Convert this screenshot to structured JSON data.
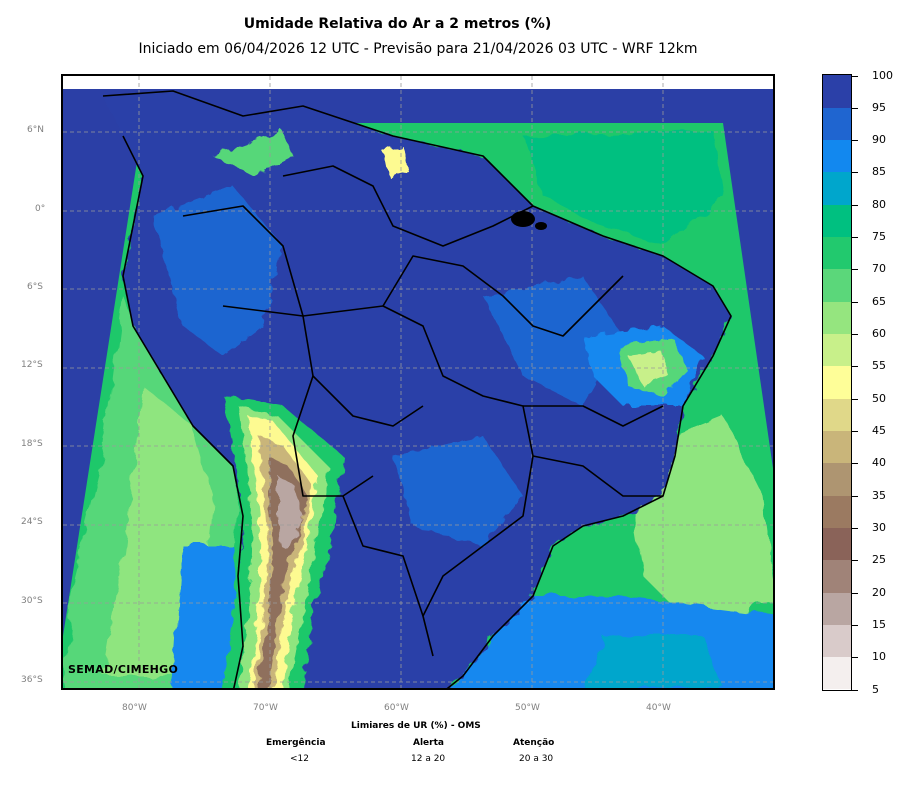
{
  "header": {
    "title": "Umidade Relativa do Ar a 2 metros (%)",
    "subtitle": "Iniciado em 06/04/2026 12 UTC - Previsão para 21/04/2026 03 UTC - WRF 12km"
  },
  "map": {
    "lat_labels": [
      "6°N",
      "0°",
      "6°S",
      "12°S",
      "18°S",
      "24°S",
      "30°S",
      "36°S"
    ],
    "lon_labels": [
      "80°W",
      "70°W",
      "60°W",
      "50°W",
      "40°W"
    ],
    "credit": "SEMAD/CIMEHGO",
    "colors": {
      "ocean_high": "#2b3fa6",
      "ocean_mid": "#1565cc",
      "coastal_green": "#1ec86a",
      "andes_brown": "#8f6f5d",
      "dry_yellow": "#fdfa91"
    }
  },
  "colorbar": {
    "tick_labels": [
      "5",
      "10",
      "15",
      "20",
      "25",
      "30",
      "35",
      "40",
      "45",
      "50",
      "55",
      "60",
      "65",
      "70",
      "75",
      "80",
      "85",
      "90",
      "95",
      "100"
    ],
    "colors": [
      "#f4efee",
      "#d9cbca",
      "#b9a6a2",
      "#a08378",
      "#8a6359",
      "#9b7a61",
      "#ae9571",
      "#c9b57a",
      "#e0d889",
      "#fefe98",
      "#c8f08a",
      "#95e57f",
      "#5bd77a",
      "#22c96e",
      "#00c080",
      "#00a6cc",
      "#1288ef",
      "#1f65d0",
      "#2b40a8"
    ]
  },
  "thresholds": {
    "heading": "Limiares de UR (%) - OMS",
    "levels": [
      {
        "name": "Emergência",
        "value": "<12"
      },
      {
        "name": "Alerta",
        "value": "12 a 20"
      },
      {
        "name": "Atenção",
        "value": "20 a 30"
      }
    ]
  }
}
